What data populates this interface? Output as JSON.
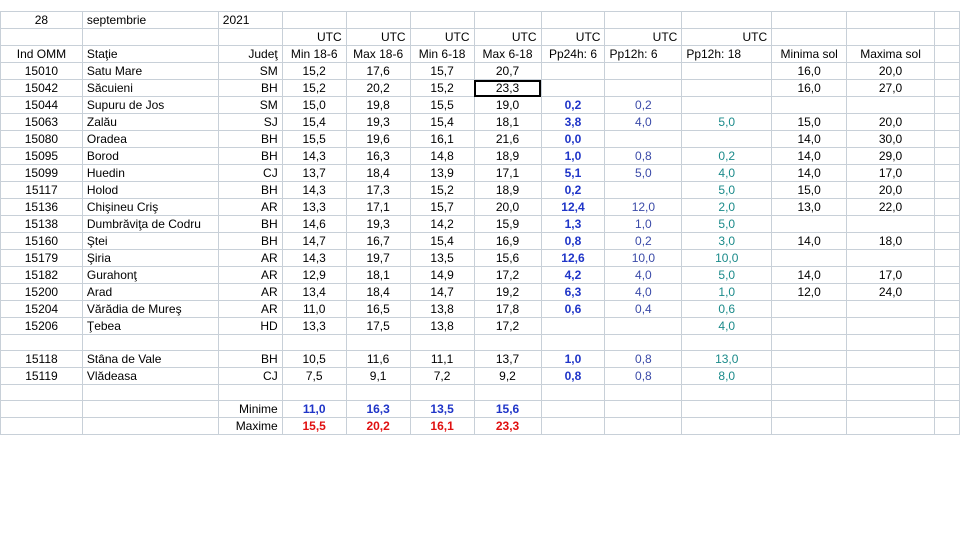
{
  "header": {
    "day": "28",
    "month": "septembrie",
    "year": "2021",
    "utc_labels": [
      "UTC",
      "UTC",
      "UTC",
      "UTC",
      "UTC",
      "UTC",
      "UTC"
    ],
    "columns": [
      "Ind OMM",
      "Staţie",
      "Judeţ",
      "Min 18-6",
      "Max 18-6",
      "Min 6-18",
      "Max 6-18",
      "Pp24h: 6",
      "Pp12h: 6",
      "Pp12h: 18",
      "Minima sol",
      "Maxima sol"
    ]
  },
  "rows": [
    {
      "id": "15010",
      "station": "Satu Mare",
      "county": "SM",
      "min186": "15,2",
      "max186": "17,6",
      "min618": "15,7",
      "max618": "20,7",
      "pp24": "",
      "pp12_6": "",
      "pp12_18": "",
      "minsol": "16,0",
      "maxsol": "20,0"
    },
    {
      "id": "15042",
      "station": "Săcuieni",
      "county": "BH",
      "min186": "15,2",
      "max186": "20,2",
      "min618": "15,2",
      "max618": "23,3",
      "pp24": "",
      "pp12_6": "",
      "pp12_18": "",
      "minsol": "16,0",
      "maxsol": "27,0"
    },
    {
      "id": "15044",
      "station": "Supuru de Jos",
      "county": "SM",
      "min186": "15,0",
      "max186": "19,8",
      "min618": "15,5",
      "max618": "19,0",
      "pp24": "0,2",
      "pp12_6": "0,2",
      "pp12_18": "",
      "minsol": "",
      "maxsol": ""
    },
    {
      "id": "15063",
      "station": "Zalău",
      "county": "SJ",
      "min186": "15,4",
      "max186": "19,3",
      "min618": "15,4",
      "max618": "18,1",
      "pp24": "3,8",
      "pp12_6": "4,0",
      "pp12_18": "5,0",
      "minsol": "15,0",
      "maxsol": "20,0"
    },
    {
      "id": "15080",
      "station": "Oradea",
      "county": "BH",
      "min186": "15,5",
      "max186": "19,6",
      "min618": "16,1",
      "max618": "21,6",
      "pp24": "0,0",
      "pp12_6": "",
      "pp12_18": "",
      "minsol": "14,0",
      "maxsol": "30,0"
    },
    {
      "id": "15095",
      "station": "Borod",
      "county": "BH",
      "min186": "14,3",
      "max186": "16,3",
      "min618": "14,8",
      "max618": "18,9",
      "pp24": "1,0",
      "pp12_6": "0,8",
      "pp12_18": "0,2",
      "minsol": "14,0",
      "maxsol": "29,0"
    },
    {
      "id": "15099",
      "station": "Huedin",
      "county": "CJ",
      "min186": "13,7",
      "max186": "18,4",
      "min618": "13,9",
      "max618": "17,1",
      "pp24": "5,1",
      "pp12_6": "5,0",
      "pp12_18": "4,0",
      "minsol": "14,0",
      "maxsol": "17,0"
    },
    {
      "id": "15117",
      "station": "Holod",
      "county": "BH",
      "min186": "14,3",
      "max186": "17,3",
      "min618": "15,2",
      "max618": "18,9",
      "pp24": "0,2",
      "pp12_6": "",
      "pp12_18": "5,0",
      "minsol": "15,0",
      "maxsol": "20,0"
    },
    {
      "id": "15136",
      "station": "Chişineu      Criş",
      "county": "AR",
      "min186": "13,3",
      "max186": "17,1",
      "min618": "15,7",
      "max618": "20,0",
      "pp24": "12,4",
      "pp12_6": "12,0",
      "pp12_18": "2,0",
      "minsol": "13,0",
      "maxsol": "22,0"
    },
    {
      "id": "15138",
      "station": "Dumbrăviţa    de Codru",
      "county": "BH",
      "min186": "14,6",
      "max186": "19,3",
      "min618": "14,2",
      "max618": "15,9",
      "pp24": "1,3",
      "pp12_6": "1,0",
      "pp12_18": "5,0",
      "minsol": "",
      "maxsol": ""
    },
    {
      "id": "15160",
      "station": "Ştei",
      "county": "BH",
      "min186": "14,7",
      "max186": "16,7",
      "min618": "15,4",
      "max618": "16,9",
      "pp24": "0,8",
      "pp12_6": "0,2",
      "pp12_18": "3,0",
      "minsol": "14,0",
      "maxsol": "18,0"
    },
    {
      "id": "15179",
      "station": "Şiria",
      "county": "AR",
      "min186": "14,3",
      "max186": "19,7",
      "min618": "13,5",
      "max618": "15,6",
      "pp24": "12,6",
      "pp12_6": "10,0",
      "pp12_18": "10,0",
      "minsol": "",
      "maxsol": ""
    },
    {
      "id": "15182",
      "station": "Gurahonţ",
      "county": "AR",
      "min186": "12,9",
      "max186": "18,1",
      "min618": "14,9",
      "max618": "17,2",
      "pp24": "4,2",
      "pp12_6": "4,0",
      "pp12_18": "5,0",
      "minsol": "14,0",
      "maxsol": "17,0"
    },
    {
      "id": "15200",
      "station": "Arad",
      "county": "AR",
      "min186": "13,4",
      "max186": "18,4",
      "min618": "14,7",
      "max618": "19,2",
      "pp24": "6,3",
      "pp12_6": "4,0",
      "pp12_18": "1,0",
      "minsol": "12,0",
      "maxsol": "24,0"
    },
    {
      "id": "15204",
      "station": "Vărădia de Mureş",
      "county": "AR",
      "min186": "11,0",
      "max186": "16,5",
      "min618": "13,8",
      "max618": "17,8",
      "pp24": "0,6",
      "pp12_6": "0,4",
      "pp12_18": "0,6",
      "minsol": "",
      "maxsol": ""
    },
    {
      "id": "15206",
      "station": "Ţebea",
      "county": "HD",
      "min186": "13,3",
      "max186": "17,5",
      "min618": "13,8",
      "max618": "17,2",
      "pp24": "",
      "pp12_6": "",
      "pp12_18": "4,0",
      "minsol": "",
      "maxsol": ""
    }
  ],
  "mountain_rows": [
    {
      "id": "15118",
      "station": "Stâna de Vale",
      "county": "BH",
      "min186": "10,5",
      "max186": "11,6",
      "min618": "11,1",
      "max618": "13,7",
      "pp24": "1,0",
      "pp12_6": "0,8",
      "pp12_18": "13,0",
      "minsol": "",
      "maxsol": ""
    },
    {
      "id": "15119",
      "station": "Vlădeasa",
      "county": "CJ",
      "min186": "7,5",
      "max186": "9,1",
      "min618": "7,2",
      "max618": "9,2",
      "pp24": "0,8",
      "pp12_6": "0,8",
      "pp12_18": "8,0",
      "minsol": "",
      "maxsol": ""
    }
  ],
  "summary": {
    "min_label": "Minime",
    "max_label": "Maxime",
    "minime": [
      "11,0",
      "16,3",
      "13,5",
      "15,6"
    ],
    "maxime": [
      "15,5",
      "20,2",
      "16,1",
      "23,3"
    ]
  },
  "colors": {
    "pp24": "#1f35c8",
    "pp12_6": "#3a4aa8",
    "pp12_18": "#1a8a8a",
    "minime": "#1f35c8",
    "maxime": "#e01010",
    "gridline": "#c8d0d8"
  }
}
